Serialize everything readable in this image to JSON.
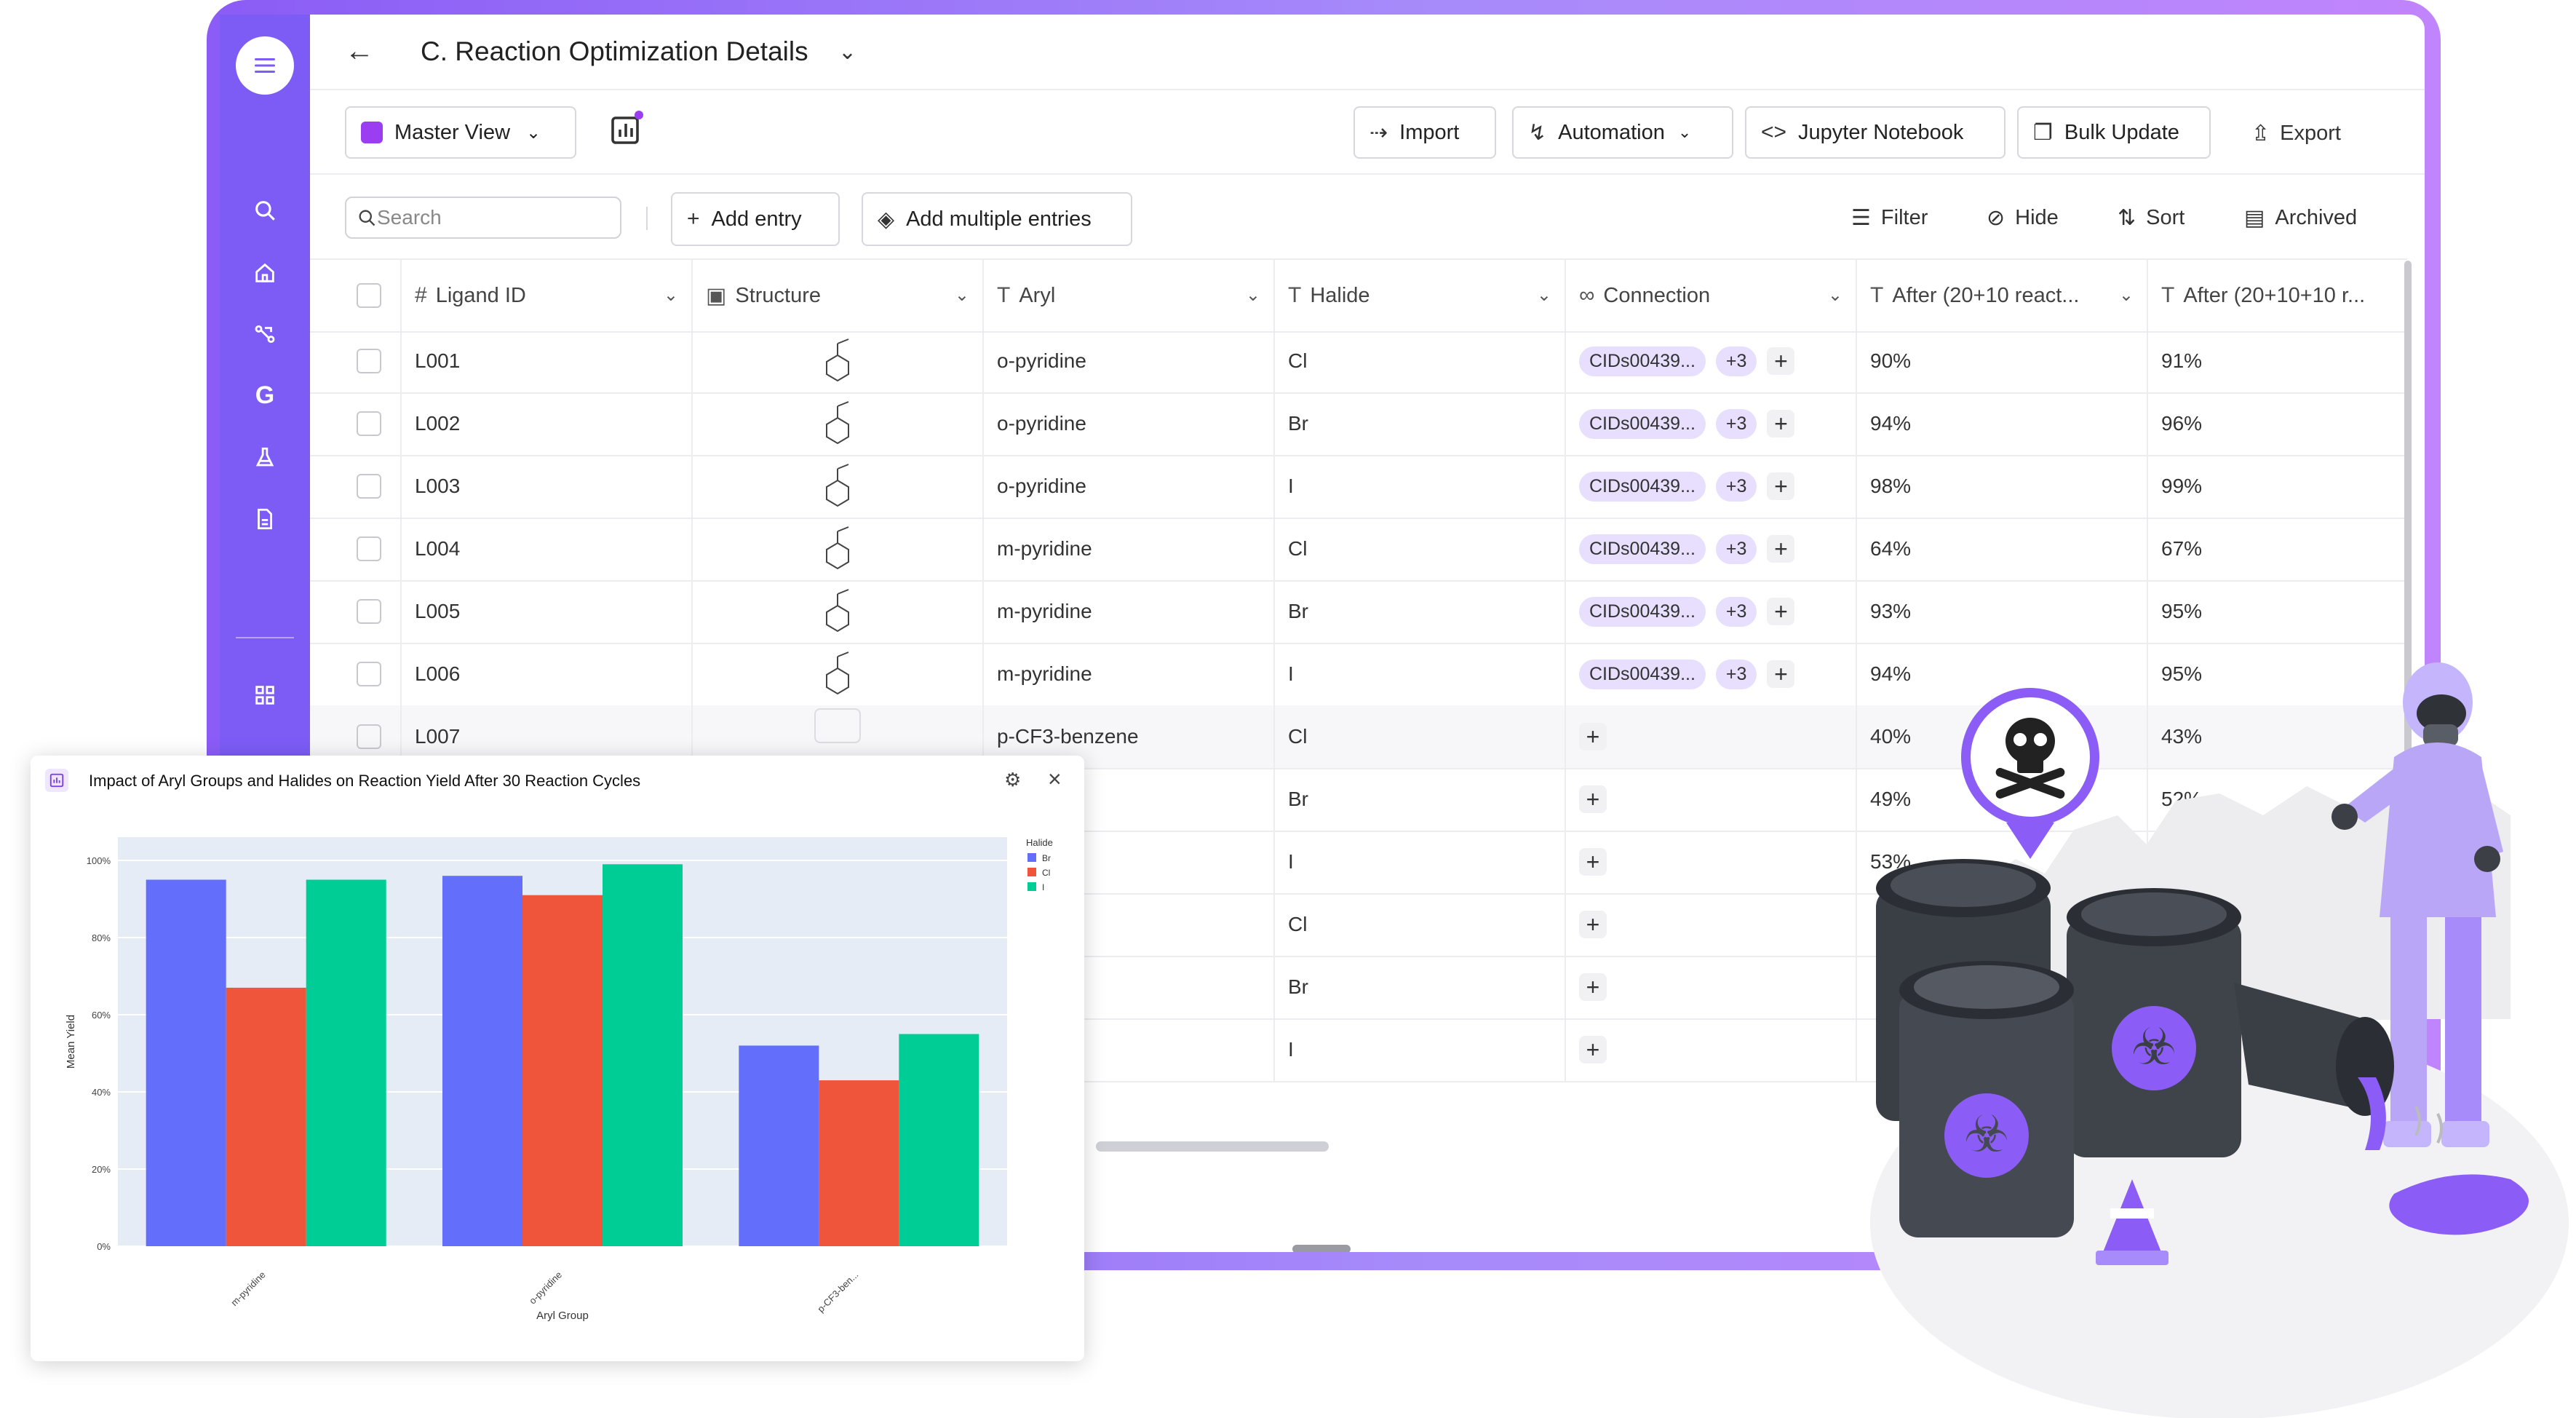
{
  "header": {
    "title": "C. Reaction Optimization Details"
  },
  "toolbar": {
    "view": "Master View",
    "import": "Import",
    "automation": "Automation",
    "jupyter": "Jupyter Notebook",
    "bulk": "Bulk Update",
    "export": "Export"
  },
  "searchbar": {
    "placeholder": "Search",
    "add_entry": "Add entry",
    "add_multiple": "Add multiple entries",
    "filter": "Filter",
    "hide": "Hide",
    "sort": "Sort",
    "archived": "Archived"
  },
  "columns": [
    "Ligand ID",
    "Structure",
    "Aryl",
    "Halide",
    "Connection",
    "After (20+10 react...",
    "After (20+10+10 r..."
  ],
  "rows": [
    {
      "id": "L001",
      "aryl": "o-pyridine",
      "halide": "Cl",
      "conn": "CIDs00439...",
      "more": "+3",
      "a": "90%",
      "b": "91%"
    },
    {
      "id": "L002",
      "aryl": "o-pyridine",
      "halide": "Br",
      "conn": "CIDs00439...",
      "more": "+3",
      "a": "94%",
      "b": "96%"
    },
    {
      "id": "L003",
      "aryl": "o-pyridine",
      "halide": "I",
      "conn": "CIDs00439...",
      "more": "+3",
      "a": "98%",
      "b": "99%"
    },
    {
      "id": "L004",
      "aryl": "m-pyridine",
      "halide": "Cl",
      "conn": "CIDs00439...",
      "more": "+3",
      "a": "64%",
      "b": "67%"
    },
    {
      "id": "L005",
      "aryl": "m-pyridine",
      "halide": "Br",
      "conn": "CIDs00439...",
      "more": "+3",
      "a": "93%",
      "b": "95%"
    },
    {
      "id": "L006",
      "aryl": "m-pyridine",
      "halide": "I",
      "conn": "CIDs00439...",
      "more": "+3",
      "a": "94%",
      "b": "95%"
    },
    {
      "id": "L007",
      "aryl": "p-CF3-benzene",
      "halide": "Cl",
      "conn": "",
      "more": "",
      "a": "40%",
      "b": "43%"
    },
    {
      "id": "",
      "aryl": "enzene",
      "halide": "Br",
      "conn": "",
      "more": "",
      "a": "49%",
      "b": "52%"
    },
    {
      "id": "",
      "aryl": "enzene",
      "halide": "I",
      "conn": "",
      "more": "",
      "a": "53%",
      "b": ""
    },
    {
      "id": "",
      "aryl": "e",
      "halide": "Cl",
      "conn": "",
      "more": "",
      "a": "",
      "b": ""
    },
    {
      "id": "",
      "aryl": "e",
      "halide": "Br",
      "conn": "",
      "more": "",
      "a": "",
      "b": ""
    },
    {
      "id": "",
      "aryl": "e",
      "halide": "I",
      "conn": "",
      "more": "",
      "a": "",
      "b": ""
    }
  ],
  "chart_panel": {
    "title": "Impact of Aryl Groups and Halides on Reaction Yield After 30 Reaction Cycles"
  },
  "chart_data": {
    "type": "bar",
    "title": "Impact of Aryl Groups and Halides on Reaction Yield After 30 Reaction Cycles",
    "xlabel": "Aryl Group",
    "ylabel": "Mean Yield",
    "categories": [
      "m-pyridine",
      "o-pyridine",
      "p-CF3-ben..."
    ],
    "legend_title": "Halide",
    "series": [
      {
        "name": "Br",
        "color": "#636efa",
        "values": [
          95,
          96,
          52
        ]
      },
      {
        "name": "Cl",
        "color": "#ef553b",
        "values": [
          67,
          91,
          43
        ]
      },
      {
        "name": "I",
        "color": "#00cc96",
        "values": [
          95,
          99,
          55
        ]
      }
    ],
    "yticks": [
      "0%",
      "20%",
      "40%",
      "60%",
      "80%",
      "100%"
    ],
    "ylim": [
      0,
      100
    ],
    "legend_position": "right"
  }
}
